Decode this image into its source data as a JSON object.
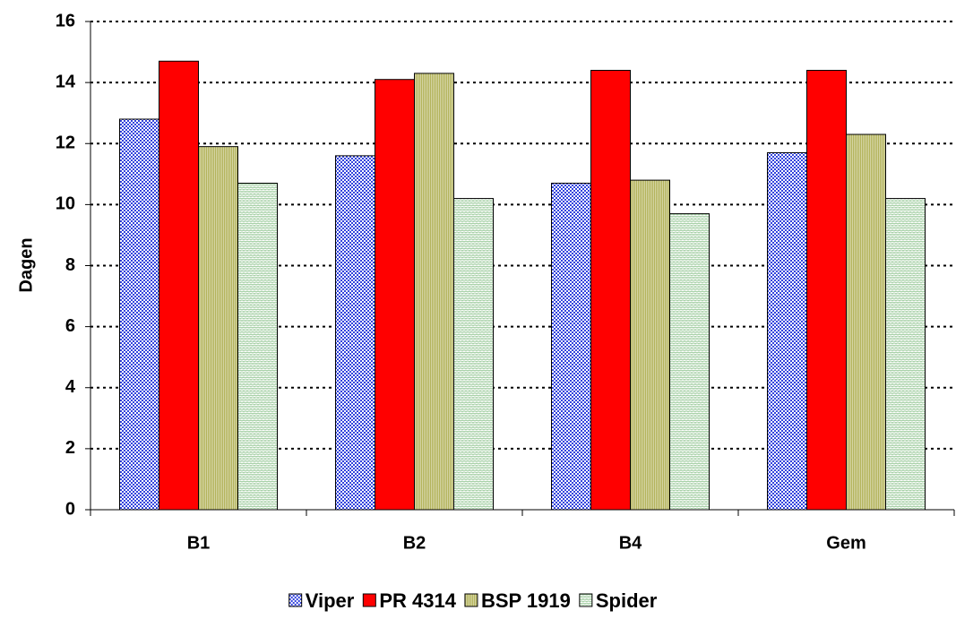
{
  "chart_data": {
    "type": "bar",
    "ylabel": "Dagen",
    "categories": [
      "B1",
      "B2",
      "B4",
      "Gem"
    ],
    "series": [
      {
        "name": "Viper",
        "color": "#3344dd",
        "values": [
          12.8,
          11.6,
          10.7,
          11.7
        ]
      },
      {
        "name": "PR 4314",
        "color": "#ff0000",
        "values": [
          14.7,
          14.1,
          14.4,
          14.4
        ]
      },
      {
        "name": "BSP 1919",
        "color": "#b3b35a",
        "values": [
          11.9,
          14.3,
          10.8,
          12.3
        ]
      },
      {
        "name": "Spider",
        "color": "#88c088",
        "values": [
          10.7,
          10.2,
          9.7,
          10.2
        ]
      }
    ],
    "ylim": [
      0,
      16
    ],
    "yticks": [
      0,
      2,
      4,
      6,
      8,
      10,
      12,
      14,
      16
    ],
    "grid": true,
    "legend": "bottom"
  }
}
